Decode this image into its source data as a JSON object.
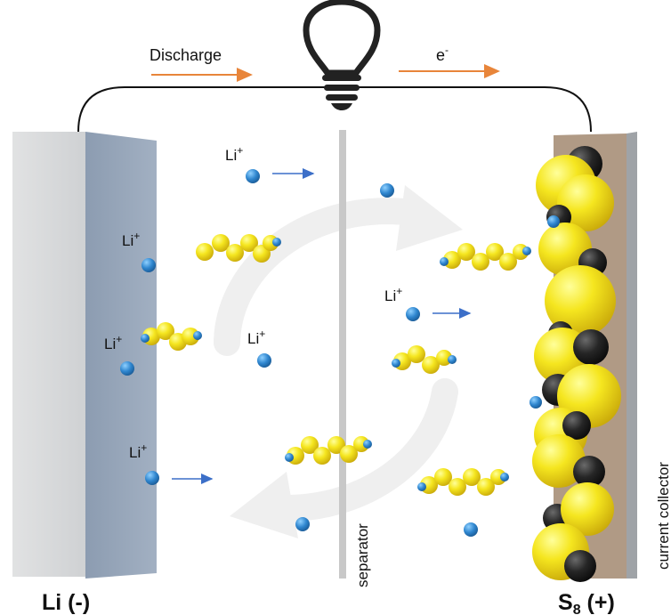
{
  "labels": {
    "discharge": "Discharge",
    "electron": "e",
    "electron_sup": "-",
    "separator": "separator",
    "current_collector": "current collector",
    "anode": "Li (-)",
    "cathode_pre": "S",
    "cathode_sub": "8",
    "cathode_post": " (+)",
    "li_ion": "Li",
    "li_ion_sup": "+"
  },
  "colors": {
    "arrow_orange": "#e8853a",
    "ion_blue": "#2f86cf",
    "sulfur_yellow": "#f2e21e",
    "carbon_black": "#1a1a1a",
    "anode_gray": "#d0d3d6",
    "anode_blue": "#95a5ba",
    "collector_brown": "#b09a85",
    "separator_gray": "#c8c8c8"
  },
  "icons": {
    "bulb": "lightbulb-icon"
  }
}
